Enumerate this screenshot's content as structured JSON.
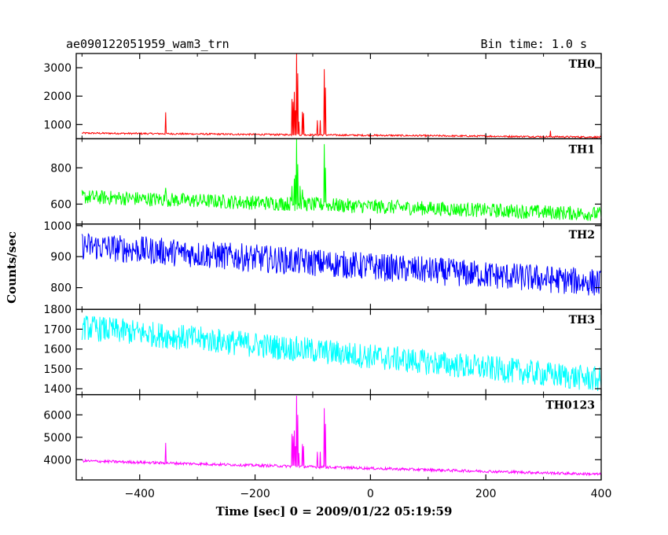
{
  "header": {
    "obs_id": "ae090122051959_wam3_trn",
    "bin_time": "Bin time: 1.0 s"
  },
  "xlabel": "Time [sec] 0 = 2009/01/22 05:19:59",
  "ylabel": "Counts/sec",
  "chart_data": {
    "type": "line",
    "x_range": [
      -510,
      400
    ],
    "x_ticks": [
      -400,
      -200,
      0,
      200,
      400
    ],
    "x_tick_labels": [
      "−400",
      "−200",
      "0",
      "200",
      "400"
    ],
    "panels": [
      {
        "name": "TH0",
        "color": "#ff0000",
        "ylim": [
          500,
          3500
        ],
        "yticks": [
          1000,
          2000,
          3000
        ],
        "base_start": 700,
        "base_end": 560,
        "noise": 30,
        "spikes": [
          {
            "t": -355,
            "v": 1430
          },
          {
            "t": -136,
            "v": 1900
          },
          {
            "t": -134,
            "v": 1800
          },
          {
            "t": -132,
            "v": 2150
          },
          {
            "t": -130,
            "v": 1500
          },
          {
            "t": -128,
            "v": 3500
          },
          {
            "t": -126,
            "v": 2800
          },
          {
            "t": -124,
            "v": 1100
          },
          {
            "t": -118,
            "v": 1450
          },
          {
            "t": -116,
            "v": 1400
          },
          {
            "t": -92,
            "v": 1150
          },
          {
            "t": -87,
            "v": 1150
          },
          {
            "t": -80,
            "v": 2950
          },
          {
            "t": -78,
            "v": 2300
          },
          {
            "t": 312,
            "v": 780
          }
        ]
      },
      {
        "name": "TH1",
        "color": "#00ff00",
        "ylim": [
          490,
          960
        ],
        "yticks": [
          600,
          800
        ],
        "base_start": 640,
        "base_end": 545,
        "noise": 40,
        "spikes": [
          {
            "t": -355,
            "v": 690
          },
          {
            "t": -136,
            "v": 700
          },
          {
            "t": -132,
            "v": 740
          },
          {
            "t": -130,
            "v": 760
          },
          {
            "t": -128,
            "v": 960
          },
          {
            "t": -126,
            "v": 820
          },
          {
            "t": -122,
            "v": 700
          },
          {
            "t": -118,
            "v": 680
          },
          {
            "t": -80,
            "v": 930
          },
          {
            "t": -78,
            "v": 800
          }
        ]
      },
      {
        "name": "TH2",
        "color": "#0000ff",
        "ylim": [
          730,
          1005
        ],
        "yticks": [
          800,
          900,
          1000
        ],
        "base_start": 935,
        "base_end": 815,
        "noise": 45,
        "spikes": []
      },
      {
        "name": "TH3",
        "color": "#00ffff",
        "ylim": [
          1370,
          1800
        ],
        "yticks": [
          1400,
          1500,
          1600,
          1700,
          1800
        ],
        "base_start": 1710,
        "base_end": 1445,
        "noise": 65,
        "spikes": []
      },
      {
        "name": "TH0123",
        "color": "#ff00ff",
        "ylim": [
          3100,
          6900
        ],
        "yticks": [
          4000,
          5000,
          6000
        ],
        "base_start": 3950,
        "base_end": 3350,
        "noise": 60,
        "spikes": [
          {
            "t": -355,
            "v": 4750
          },
          {
            "t": -136,
            "v": 5150
          },
          {
            "t": -134,
            "v": 5050
          },
          {
            "t": -132,
            "v": 5300
          },
          {
            "t": -130,
            "v": 4600
          },
          {
            "t": -128,
            "v": 6850
          },
          {
            "t": -126,
            "v": 6000
          },
          {
            "t": -124,
            "v": 4300
          },
          {
            "t": -118,
            "v": 4700
          },
          {
            "t": -116,
            "v": 4600
          },
          {
            "t": -92,
            "v": 4350
          },
          {
            "t": -87,
            "v": 4350
          },
          {
            "t": -80,
            "v": 6300
          },
          {
            "t": -78,
            "v": 5600
          }
        ]
      }
    ]
  }
}
